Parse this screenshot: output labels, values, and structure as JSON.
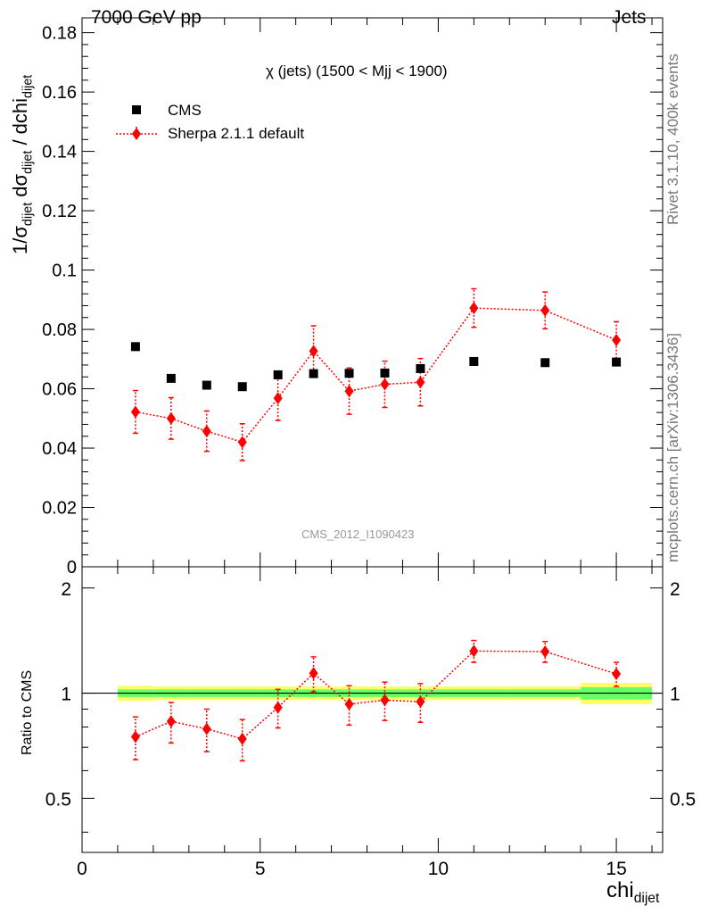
{
  "header": {
    "left": "7000 GeV pp",
    "right": "Jets"
  },
  "side_text": {
    "top": "Rivet 3.1.10,  400k events",
    "bottom": "mcplots.cern.ch [arXiv:1306.3436]"
  },
  "main_ylabel": {
    "pre": "1/σ",
    "sub1": "dijet",
    "mid": " dσ",
    "sub2": "dijet",
    "post": " / dchi",
    "sub3": "dijet"
  },
  "ratio_ylabel": "Ratio to CMS",
  "xlabel": {
    "text": "chi",
    "sub": "dijet"
  },
  "plot_title": "χ (jets) (1500 < Mjj < 1900)",
  "analysis_tag": "CMS_2012_I1090423",
  "legend": {
    "data_label": "CMS",
    "mc_label": "Sherpa 2.1.1 default"
  },
  "colors": {
    "data": "#000000",
    "mc": "#ff0000",
    "band_inner": "#66ff66",
    "band_outer": "#ffff66"
  },
  "chart_data": {
    "type": "scatter",
    "x_range": [
      0,
      16.3
    ],
    "main_y_range": [
      0,
      0.185
    ],
    "ratio_y_range": [
      0.35,
      2.3
    ],
    "x_ticks": [
      "0",
      "5",
      "10",
      "15"
    ],
    "main_y_ticks": [
      "0",
      "0.02",
      "0.04",
      "0.06",
      "0.08",
      "0.1",
      "0.12",
      "0.14",
      "0.16",
      "0.18"
    ],
    "ratio_y_ticks": [
      "0.5",
      "1",
      "2"
    ],
    "bins": [
      {
        "lo": 1,
        "hi": 2
      },
      {
        "lo": 2,
        "hi": 3
      },
      {
        "lo": 3,
        "hi": 4
      },
      {
        "lo": 4,
        "hi": 5
      },
      {
        "lo": 5,
        "hi": 6
      },
      {
        "lo": 6,
        "hi": 7
      },
      {
        "lo": 7,
        "hi": 8
      },
      {
        "lo": 8,
        "hi": 9
      },
      {
        "lo": 9,
        "hi": 10
      },
      {
        "lo": 10,
        "hi": 12
      },
      {
        "lo": 12,
        "hi": 14
      },
      {
        "lo": 14,
        "hi": 16
      }
    ],
    "series": [
      {
        "name": "CMS",
        "x": [
          1.5,
          2.5,
          3.5,
          4.5,
          5.5,
          6.5,
          7.5,
          8.5,
          9.5,
          11,
          13,
          15
        ],
        "y": [
          0.0742,
          0.0635,
          0.0612,
          0.0607,
          0.0647,
          0.0651,
          0.0652,
          0.0653,
          0.0668,
          0.0692,
          0.0688,
          0.069
        ]
      },
      {
        "name": "Sherpa 2.1.1 default",
        "x": [
          1.5,
          2.5,
          3.5,
          4.5,
          5.5,
          6.5,
          7.5,
          8.5,
          9.5,
          11,
          13,
          15
        ],
        "y": [
          0.0522,
          0.05,
          0.0457,
          0.042,
          0.0568,
          0.0727,
          0.0592,
          0.0615,
          0.0622,
          0.0872,
          0.0864,
          0.0764
        ],
        "err": [
          0.0072,
          0.007,
          0.0068,
          0.0062,
          0.0075,
          0.0085,
          0.0078,
          0.0078,
          0.008,
          0.0065,
          0.0062,
          0.0062
        ]
      }
    ],
    "ratio": {
      "y": [
        0.75,
        0.83,
        0.79,
        0.74,
        0.91,
        1.14,
        0.93,
        0.955,
        0.945,
        1.32,
        1.315,
        1.135
      ],
      "err": [
        0.105,
        0.11,
        0.11,
        0.1,
        0.115,
        0.13,
        0.12,
        0.12,
        0.12,
        0.095,
        0.09,
        0.09
      ],
      "band_inner": [
        0.025,
        0.025,
        0.025,
        0.025,
        0.025,
        0.025,
        0.025,
        0.025,
        0.025,
        0.025,
        0.025,
        0.04
      ],
      "band_outer": [
        0.05,
        0.045,
        0.045,
        0.045,
        0.045,
        0.045,
        0.045,
        0.045,
        0.045,
        0.045,
        0.045,
        0.07
      ]
    }
  }
}
